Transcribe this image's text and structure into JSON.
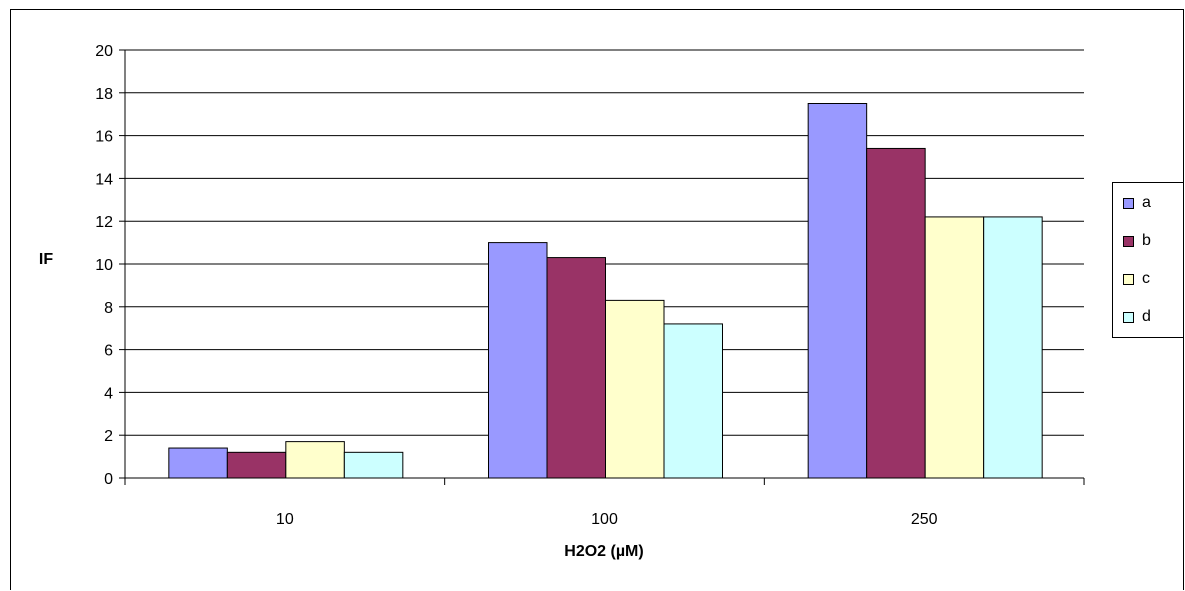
{
  "chart_data": {
    "type": "bar",
    "title": "",
    "xlabel": "H2O2 (µM)",
    "ylabel": "IF",
    "categories": [
      "10",
      "100",
      "250"
    ],
    "series": [
      {
        "name": "a",
        "color": "#9999FF",
        "values": [
          1.4,
          11.0,
          17.5
        ]
      },
      {
        "name": "b",
        "color": "#993366",
        "values": [
          1.2,
          10.3,
          15.4
        ]
      },
      {
        "name": "c",
        "color": "#FFFFCC",
        "values": [
          1.7,
          8.3,
          12.2
        ]
      },
      {
        "name": "d",
        "color": "#CCFFFF",
        "values": [
          1.2,
          7.2,
          12.2
        ]
      }
    ],
    "ylim": [
      0,
      20
    ],
    "yticks": [
      0,
      2,
      4,
      6,
      8,
      10,
      12,
      14,
      16,
      18,
      20
    ],
    "grid": true,
    "legend": "right"
  }
}
